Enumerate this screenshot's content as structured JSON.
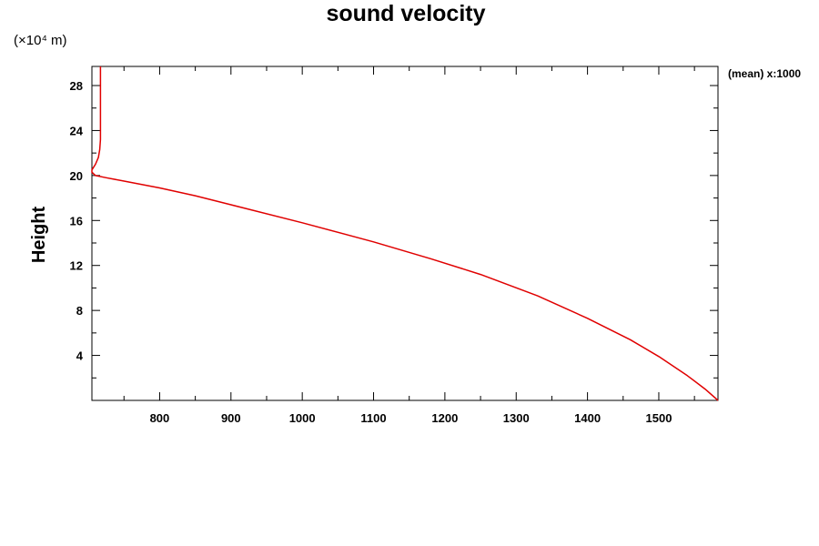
{
  "chart_data": {
    "type": "line",
    "title": "sound velocity",
    "y_unit_label": "(×10⁴ m)",
    "ylabel": "Height",
    "xlabel": "",
    "annotation": "(mean) x:1000",
    "xlim": [
      705,
      1583
    ],
    "ylim": [
      0,
      29.7
    ],
    "x_ticks": [
      800,
      900,
      1000,
      1100,
      1200,
      1300,
      1400,
      1500
    ],
    "y_ticks": [
      4,
      8,
      12,
      16,
      20,
      24,
      28
    ],
    "grid": false,
    "series": [
      {
        "color": "#e00000",
        "points": [
          [
            1583,
            0.0
          ],
          [
            1565,
            1.0
          ],
          [
            1540,
            2.2
          ],
          [
            1500,
            3.9
          ],
          [
            1460,
            5.4
          ],
          [
            1400,
            7.3
          ],
          [
            1330,
            9.3
          ],
          [
            1250,
            11.2
          ],
          [
            1180,
            12.6
          ],
          [
            1100,
            14.1
          ],
          [
            1000,
            15.8
          ],
          [
            900,
            17.4
          ],
          [
            850,
            18.2
          ],
          [
            800,
            18.9
          ],
          [
            750,
            19.5
          ],
          [
            725,
            19.8
          ],
          [
            710,
            20.0
          ],
          [
            705,
            20.3
          ],
          [
            705,
            20.5
          ],
          [
            710,
            21.0
          ],
          [
            714,
            21.6
          ],
          [
            716,
            22.3
          ],
          [
            717,
            23.2
          ],
          [
            717,
            24.5
          ],
          [
            717,
            29.7
          ]
        ]
      }
    ]
  }
}
